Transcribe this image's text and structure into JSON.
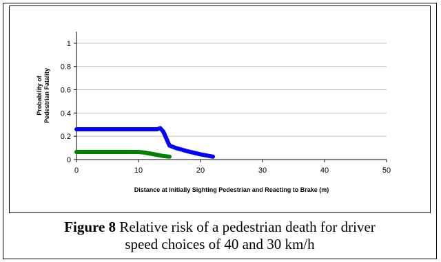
{
  "chart_data": {
    "type": "line",
    "xlabel": "Distance at Initially Sighting Pedestrian and Reacting to Brake (m)",
    "ylabel_lines": [
      "Probability of",
      "Pedestrian Fatality"
    ],
    "xlim": [
      0,
      50
    ],
    "ylim": [
      0,
      1.1
    ],
    "x_ticks": [
      "0",
      "10",
      "20",
      "30",
      "40",
      "50"
    ],
    "y_ticks": [
      "0",
      "0.2",
      "0.4",
      "0.6",
      "0.8",
      "1"
    ],
    "x_tick_values": [
      0,
      10,
      20,
      30,
      40,
      50
    ],
    "y_tick_values": [
      0,
      0.2,
      0.4,
      0.6,
      0.8,
      1
    ],
    "grid": "horizontal",
    "series": [
      {
        "color": "#0000ff",
        "x": [
          0,
          5,
          10,
          13,
          13.5,
          14,
          15,
          16,
          18,
          20,
          22
        ],
        "y": [
          0.26,
          0.26,
          0.26,
          0.26,
          0.27,
          0.24,
          0.12,
          0.1,
          0.07,
          0.045,
          0.025
        ]
      },
      {
        "color": "#008000",
        "x": [
          0,
          5,
          10,
          11,
          12,
          13,
          14,
          15
        ],
        "y": [
          0.065,
          0.065,
          0.065,
          0.06,
          0.05,
          0.04,
          0.03,
          0.025
        ]
      }
    ]
  },
  "caption": {
    "label": "Figure 8",
    "text_line1": " Relative risk of a pedestrian death for driver",
    "text_line2": "speed choices of 40 and 30 km/h"
  }
}
